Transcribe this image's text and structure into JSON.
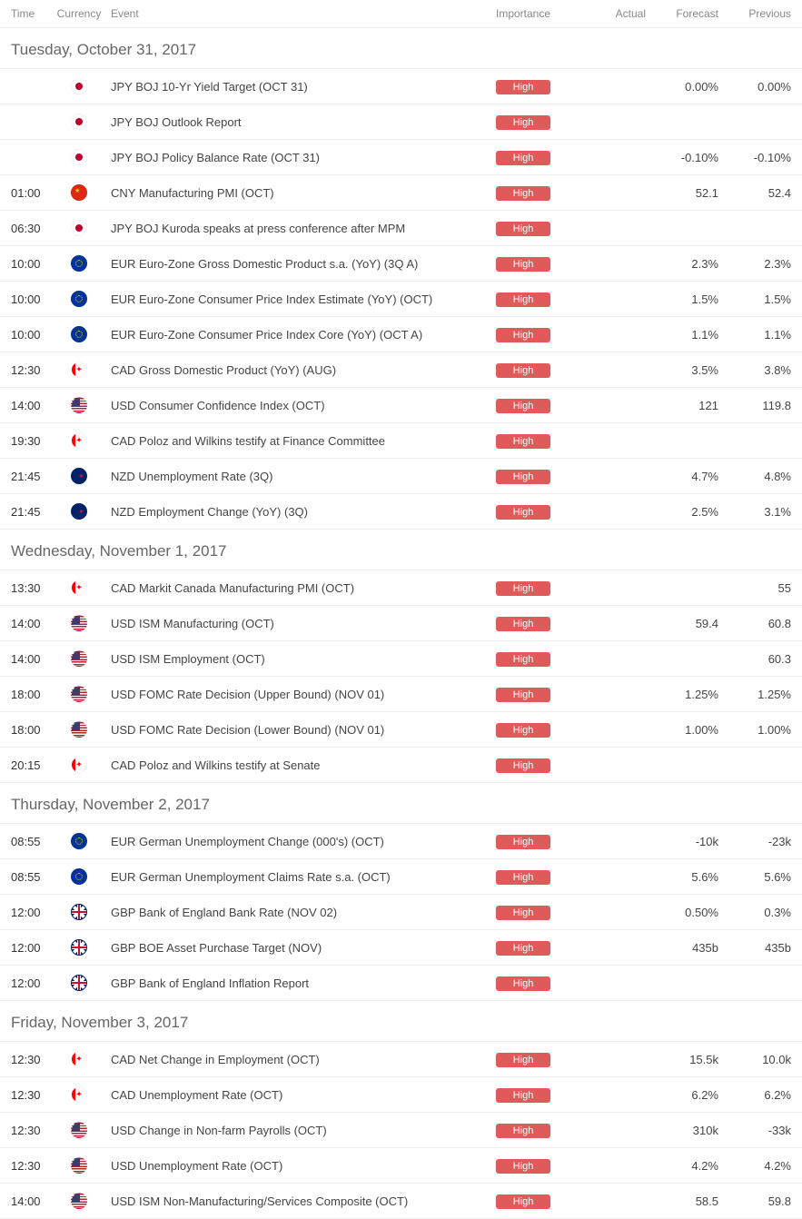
{
  "headers": {
    "time": "Time",
    "currency": "Currency",
    "event": "Event",
    "importance": "Importance",
    "actual": "Actual",
    "forecast": "Forecast",
    "previous": "Previous"
  },
  "importance_label": "High",
  "colors": {
    "badge_bg": "#e05a5a",
    "badge_text": "#ffffff",
    "header_text": "#888888",
    "row_text": "#444444",
    "border": "#eeeeee",
    "date_text": "#666666"
  },
  "sections": [
    {
      "date": "Tuesday, October 31, 2017",
      "rows": [
        {
          "time": "",
          "flag": "jpy",
          "event": "JPY BOJ 10-Yr Yield Target (OCT 31)",
          "actual": "",
          "forecast": "0.00%",
          "previous": "0.00%"
        },
        {
          "time": "",
          "flag": "jpy",
          "event": "JPY BOJ Outlook Report",
          "actual": "",
          "forecast": "",
          "previous": ""
        },
        {
          "time": "",
          "flag": "jpy",
          "event": "JPY BOJ Policy Balance Rate (OCT 31)",
          "actual": "",
          "forecast": "-0.10%",
          "previous": "-0.10%"
        },
        {
          "time": "01:00",
          "flag": "cny",
          "event": "CNY Manufacturing PMI (OCT)",
          "actual": "",
          "forecast": "52.1",
          "previous": "52.4"
        },
        {
          "time": "06:30",
          "flag": "jpy",
          "event": "JPY BOJ Kuroda speaks at press conference after MPM",
          "actual": "",
          "forecast": "",
          "previous": ""
        },
        {
          "time": "10:00",
          "flag": "eur",
          "event": "EUR Euro-Zone Gross Domestic Product s.a. (YoY) (3Q A)",
          "actual": "",
          "forecast": "2.3%",
          "previous": "2.3%"
        },
        {
          "time": "10:00",
          "flag": "eur",
          "event": "EUR Euro-Zone Consumer Price Index Estimate (YoY) (OCT)",
          "actual": "",
          "forecast": "1.5%",
          "previous": "1.5%"
        },
        {
          "time": "10:00",
          "flag": "eur",
          "event": "EUR Euro-Zone Consumer Price Index Core (YoY) (OCT A)",
          "actual": "",
          "forecast": "1.1%",
          "previous": "1.1%"
        },
        {
          "time": "12:30",
          "flag": "cad",
          "event": "CAD Gross Domestic Product (YoY) (AUG)",
          "actual": "",
          "forecast": "3.5%",
          "previous": "3.8%"
        },
        {
          "time": "14:00",
          "flag": "usd",
          "event": "USD Consumer Confidence Index (OCT)",
          "actual": "",
          "forecast": "121",
          "previous": "119.8"
        },
        {
          "time": "19:30",
          "flag": "cad",
          "event": "CAD Poloz and Wilkins testify at Finance Committee",
          "actual": "",
          "forecast": "",
          "previous": ""
        },
        {
          "time": "21:45",
          "flag": "nzd",
          "event": "NZD Unemployment Rate (3Q)",
          "actual": "",
          "forecast": "4.7%",
          "previous": "4.8%"
        },
        {
          "time": "21:45",
          "flag": "nzd",
          "event": "NZD Employment Change (YoY) (3Q)",
          "actual": "",
          "forecast": "2.5%",
          "previous": "3.1%"
        }
      ]
    },
    {
      "date": "Wednesday, November 1, 2017",
      "rows": [
        {
          "time": "13:30",
          "flag": "cad",
          "event": "CAD Markit Canada Manufacturing PMI (OCT)",
          "actual": "",
          "forecast": "",
          "previous": "55"
        },
        {
          "time": "14:00",
          "flag": "usd",
          "event": "USD ISM Manufacturing (OCT)",
          "actual": "",
          "forecast": "59.4",
          "previous": "60.8"
        },
        {
          "time": "14:00",
          "flag": "usd",
          "event": "USD ISM Employment (OCT)",
          "actual": "",
          "forecast": "",
          "previous": "60.3"
        },
        {
          "time": "18:00",
          "flag": "usd",
          "event": "USD FOMC Rate Decision (Upper Bound) (NOV 01)",
          "actual": "",
          "forecast": "1.25%",
          "previous": "1.25%"
        },
        {
          "time": "18:00",
          "flag": "usd",
          "event": "USD FOMC Rate Decision (Lower Bound) (NOV 01)",
          "actual": "",
          "forecast": "1.00%",
          "previous": "1.00%"
        },
        {
          "time": "20:15",
          "flag": "cad",
          "event": "CAD Poloz and Wilkins testify at Senate",
          "actual": "",
          "forecast": "",
          "previous": ""
        }
      ]
    },
    {
      "date": "Thursday, November 2, 2017",
      "rows": [
        {
          "time": "08:55",
          "flag": "eur",
          "event": "EUR German Unemployment Change (000's) (OCT)",
          "actual": "",
          "forecast": "-10k",
          "previous": "-23k"
        },
        {
          "time": "08:55",
          "flag": "eur",
          "event": "EUR German Unemployment Claims Rate s.a. (OCT)",
          "actual": "",
          "forecast": "5.6%",
          "previous": "5.6%"
        },
        {
          "time": "12:00",
          "flag": "gbp",
          "event": "GBP Bank of England Bank Rate (NOV 02)",
          "actual": "",
          "forecast": "0.50%",
          "previous": "0.3%"
        },
        {
          "time": "12:00",
          "flag": "gbp",
          "event": "GBP BOE Asset Purchase Target (NOV)",
          "actual": "",
          "forecast": "435b",
          "previous": "435b"
        },
        {
          "time": "12:00",
          "flag": "gbp",
          "event": "GBP Bank of England Inflation Report",
          "actual": "",
          "forecast": "",
          "previous": ""
        }
      ]
    },
    {
      "date": "Friday, November 3, 2017",
      "rows": [
        {
          "time": "12:30",
          "flag": "cad",
          "event": "CAD Net Change in Employment (OCT)",
          "actual": "",
          "forecast": "15.5k",
          "previous": "10.0k"
        },
        {
          "time": "12:30",
          "flag": "cad",
          "event": "CAD Unemployment Rate (OCT)",
          "actual": "",
          "forecast": "6.2%",
          "previous": "6.2%"
        },
        {
          "time": "12:30",
          "flag": "usd",
          "event": "USD Change in Non-farm Payrolls (OCT)",
          "actual": "",
          "forecast": "310k",
          "previous": "-33k"
        },
        {
          "time": "12:30",
          "flag": "usd",
          "event": "USD Unemployment Rate (OCT)",
          "actual": "",
          "forecast": "4.2%",
          "previous": "4.2%"
        },
        {
          "time": "14:00",
          "flag": "usd",
          "event": "USD ISM Non-Manufacturing/Services Composite (OCT)",
          "actual": "",
          "forecast": "58.5",
          "previous": "59.8"
        }
      ]
    }
  ]
}
